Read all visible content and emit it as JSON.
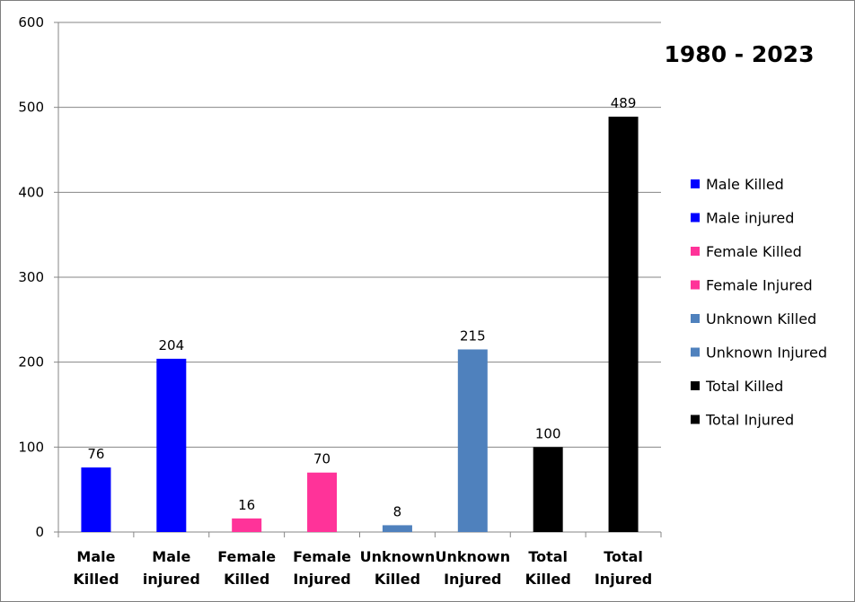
{
  "chart_data": {
    "type": "bar",
    "title": "1980 - 2023",
    "xlabel": "",
    "ylabel": "",
    "ylim": [
      0,
      600
    ],
    "yticks": [
      0,
      100,
      200,
      300,
      400,
      500,
      600
    ],
    "grid": true,
    "legend_position": "right",
    "categories": [
      [
        "Male",
        "Killed"
      ],
      [
        "Male",
        "injured"
      ],
      [
        "Female",
        "Killed"
      ],
      [
        "Female",
        "Injured"
      ],
      [
        "Unknown",
        "Killed"
      ],
      [
        "Unknown",
        "Injured"
      ],
      [
        "Total",
        "Killed"
      ],
      [
        "Total",
        "Injured"
      ]
    ],
    "series": [
      {
        "name": "Male Killed",
        "value": 76,
        "color": "#0000ff"
      },
      {
        "name": "Male injured",
        "value": 204,
        "color": "#0000ff"
      },
      {
        "name": "Female Killed",
        "value": 16,
        "color": "#ff3399"
      },
      {
        "name": "Female Injured",
        "value": 70,
        "color": "#ff3399"
      },
      {
        "name": "Unknown Killed",
        "value": 8,
        "color": "#4f81bd"
      },
      {
        "name": "Unknown Injured",
        "value": 215,
        "color": "#4f81bd"
      },
      {
        "name": "Total Killed",
        "value": 100,
        "color": "#000000"
      },
      {
        "name": "Total Injured",
        "value": 489,
        "color": "#000000"
      }
    ]
  }
}
